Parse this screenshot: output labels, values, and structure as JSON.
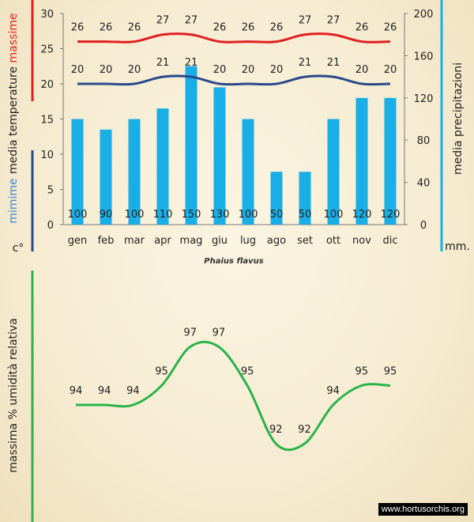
{
  "chart_data": [
    {
      "type": "bar",
      "title": "Phaius flavus",
      "categories": [
        "gen",
        "feb",
        "mar",
        "apr",
        "mag",
        "giu",
        "lug",
        "ago",
        "set",
        "ott",
        "nov",
        "dic"
      ],
      "series": [
        {
          "name": "media precipitazioni",
          "axis": "right",
          "type": "bar",
          "color": "#19aee6",
          "values": [
            100,
            90,
            100,
            110,
            150,
            130,
            100,
            50,
            50,
            100,
            120,
            120
          ]
        },
        {
          "name": "media temperature massime",
          "axis": "left",
          "type": "line",
          "color": "#e02020",
          "values": [
            26,
            26,
            26,
            27,
            27,
            26,
            26,
            26,
            27,
            27,
            26,
            26
          ]
        },
        {
          "name": "media temperature minime",
          "axis": "left",
          "type": "line",
          "color": "#2a4a8a",
          "values": [
            20,
            20,
            20,
            21,
            21,
            20,
            20,
            20,
            21,
            21,
            20,
            20
          ]
        }
      ],
      "ylim_left": [
        0,
        30
      ],
      "yticks_left": [
        "0",
        "5",
        "10",
        "15",
        "20",
        "25",
        "30"
      ],
      "ylim_right": [
        0,
        200
      ],
      "yticks_right": [
        "0",
        "40",
        "80",
        "120",
        "160",
        "200"
      ],
      "left_axis": {
        "massime": "massime",
        "media_temperature": "media  temperature",
        "minime": "mimime",
        "unit": "c°"
      },
      "right_axis": {
        "label": "media  precipitazioni",
        "unit": "mm."
      }
    },
    {
      "type": "line",
      "categories": [
        "gen",
        "feb",
        "mar",
        "apr",
        "mag",
        "giu",
        "lug",
        "ago",
        "set",
        "ott",
        "nov",
        "dic"
      ],
      "series": [
        {
          "name": "massima % umidità relativa",
          "color": "#2ab34a",
          "values": [
            94,
            94,
            94,
            95,
            97,
            97,
            95,
            92,
            92,
            94,
            95,
            95
          ]
        }
      ],
      "ylabel": "massima % umidità relativa"
    }
  ],
  "colors": {
    "temp_max": "#e02020",
    "temp_min": "#2a4a8a",
    "precip": "#19aee6",
    "humidity": "#2ab34a"
  },
  "watermark": "www.hortusorchis.org"
}
